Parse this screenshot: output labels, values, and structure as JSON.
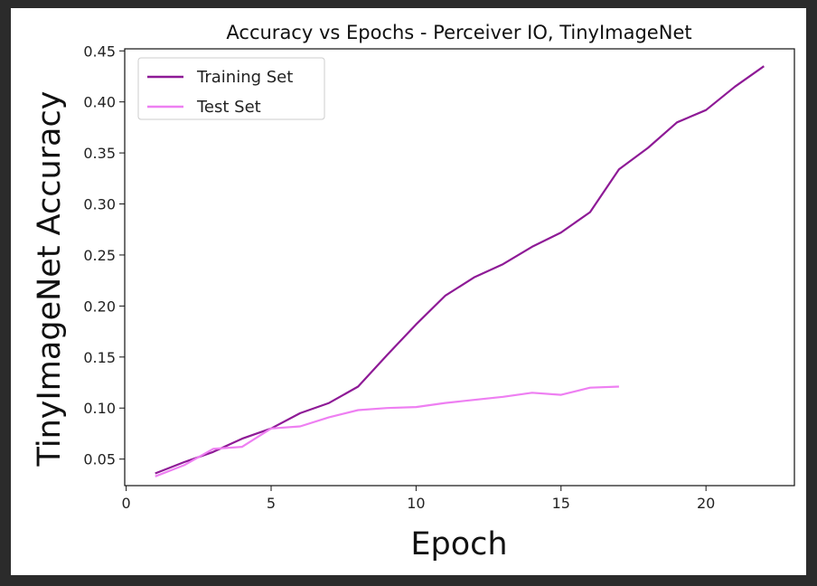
{
  "chart_data": {
    "type": "line",
    "title": "Accuracy vs Epochs - Perceiver IO, TinyImageNet",
    "xlabel": "Epoch",
    "ylabel": "TinyImageNet Accuracy",
    "xlim": [
      -0.05,
      23.05
    ],
    "ylim": [
      0.024,
      0.452
    ],
    "xticks": [
      0,
      5,
      10,
      15,
      20
    ],
    "xtick_labels": [
      "0",
      "5",
      "10",
      "15",
      "20"
    ],
    "yticks": [
      0.05,
      0.1,
      0.15,
      0.2,
      0.25,
      0.3,
      0.35,
      0.4,
      0.45
    ],
    "ytick_labels": [
      "0.05",
      "0.10",
      "0.15",
      "0.20",
      "0.25",
      "0.30",
      "0.35",
      "0.40",
      "0.45"
    ],
    "grid": false,
    "legend_position": "upper-left",
    "series": [
      {
        "name": "Training Set",
        "color": "#8e1a96",
        "x": [
          1,
          2,
          3,
          4,
          5,
          6,
          7,
          8,
          9,
          10,
          11,
          12,
          13,
          14,
          15,
          16,
          17,
          18,
          19,
          20,
          21,
          22
        ],
        "values": [
          0.036,
          0.047,
          0.057,
          0.07,
          0.08,
          0.095,
          0.105,
          0.121,
          0.152,
          0.182,
          0.21,
          0.228,
          0.241,
          0.258,
          0.272,
          0.292,
          0.334,
          0.355,
          0.38,
          0.392,
          0.415,
          0.435
        ]
      },
      {
        "name": "Test Set",
        "color": "#ee7ff2",
        "x": [
          1,
          2,
          3,
          4,
          5,
          6,
          7,
          8,
          9,
          10,
          11,
          12,
          13,
          14,
          15,
          16,
          17
        ],
        "values": [
          0.033,
          0.044,
          0.06,
          0.062,
          0.08,
          0.082,
          0.091,
          0.098,
          0.1,
          0.101,
          0.105,
          0.108,
          0.111,
          0.115,
          0.113,
          0.12,
          0.121
        ]
      }
    ]
  }
}
